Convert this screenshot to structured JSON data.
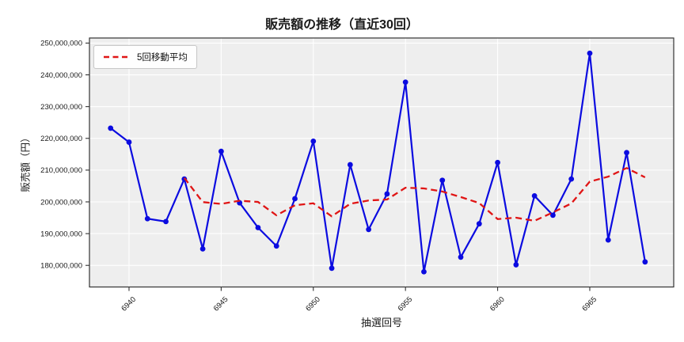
{
  "chart_data": {
    "type": "line",
    "title": "販売額の推移（直近30回）",
    "xlabel": "抽選回号",
    "ylabel": "販売額（円）",
    "x": [
      6939,
      6940,
      6941,
      6942,
      6943,
      6944,
      6945,
      6946,
      6947,
      6948,
      6949,
      6950,
      6951,
      6952,
      6953,
      6954,
      6955,
      6956,
      6957,
      6958,
      6959,
      6960,
      6961,
      6962,
      6963,
      6964,
      6965,
      6966,
      6967,
      6968
    ],
    "series": [
      {
        "id": "sales",
        "color": "#0b0be0",
        "marker": "circle",
        "line_style": "solid",
        "values": [
          223200000,
          218800000,
          194700000,
          193800000,
          207200000,
          185200000,
          215900000,
          199700000,
          191900000,
          186100000,
          201000000,
          219100000,
          179100000,
          211700000,
          191300000,
          202500000,
          237700000,
          178000000,
          206800000,
          182600000,
          193100000,
          212400000,
          180200000,
          201900000,
          195800000,
          207200000,
          246800000,
          188000000,
          215500000,
          181100000
        ]
      },
      {
        "id": "moving-average",
        "name": "5回移動平均",
        "color": "#e01515",
        "marker": "none",
        "line_style": "dashed",
        "values": [
          null,
          null,
          null,
          null,
          207540000,
          199940000,
          199360000,
          200360000,
          199980000,
          195760000,
          198920000,
          199560000,
          195440000,
          199400000,
          200440000,
          200740000,
          204460000,
          204240000,
          203260000,
          201520000,
          199640000,
          194580000,
          195020000,
          194040000,
          196680000,
          199500000,
          206380000,
          207940000,
          210660000,
          207720000
        ]
      }
    ],
    "legend": {
      "position": "upper-left",
      "entries": [
        "5回移動平均"
      ]
    },
    "xticks": [
      6940,
      6945,
      6950,
      6955,
      6960,
      6965
    ],
    "yticks": [
      180000000,
      190000000,
      200000000,
      210000000,
      220000000,
      230000000,
      240000000,
      250000000
    ],
    "ytick_labels": [
      "180,000,000",
      "190,000,000",
      "200,000,000",
      "210,000,000",
      "220,000,000",
      "230,000,000",
      "240,000,000",
      "250,000,000"
    ],
    "ylim": [
      173200000,
      251600000
    ],
    "grid": true,
    "colors": {
      "figure_bg": "#ffffff",
      "plot_bg": "#eeeeee",
      "grid": "#ffffff",
      "spine": "#333333",
      "tick_text": "#1a1a1a"
    }
  }
}
